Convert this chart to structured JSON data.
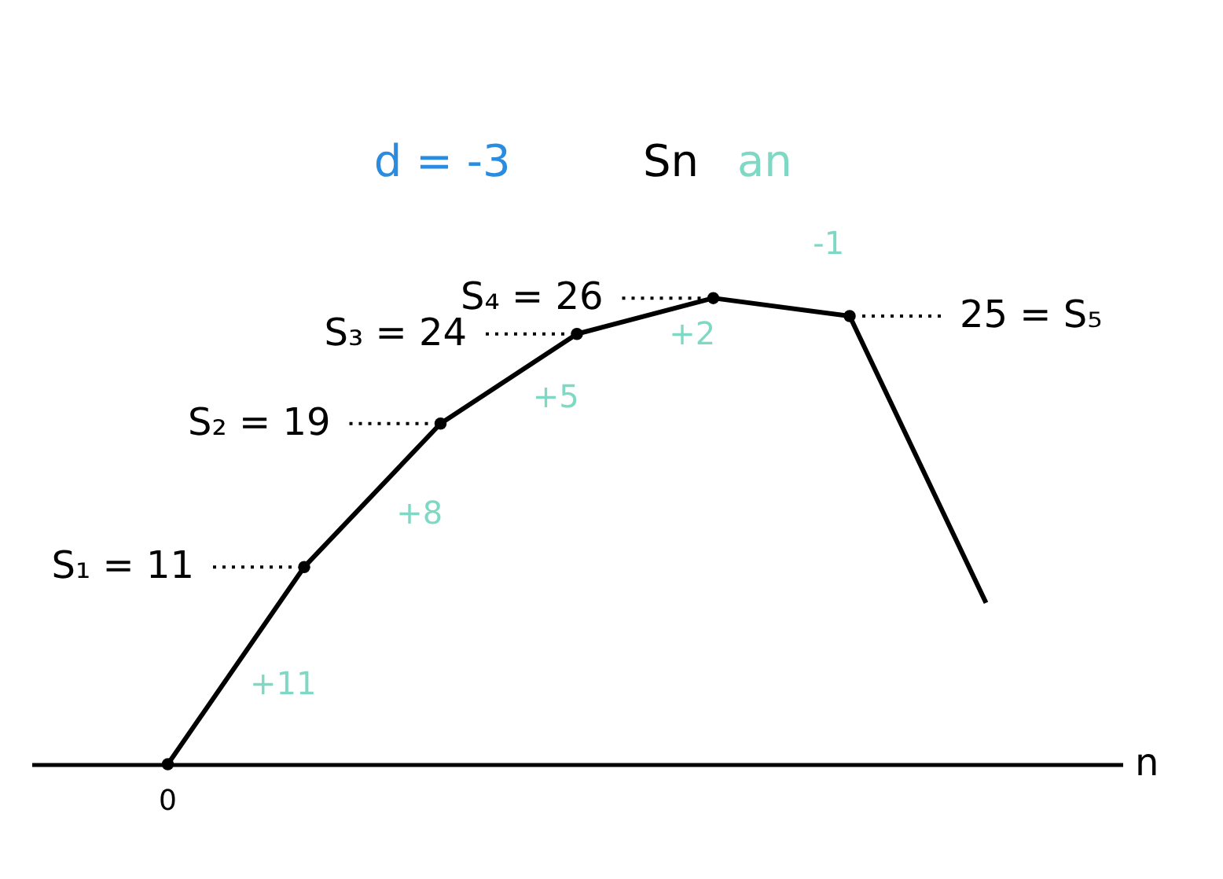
{
  "chart_data": {
    "type": "line",
    "title": "d = -3",
    "xlabel": "n",
    "categories": [
      null,
      null,
      null,
      null,
      null,
      null,
      null
    ],
    "series": [
      {
        "name": "Sn",
        "color": "#000000",
        "values": [
          0,
          11,
          19,
          24,
          26,
          25,
          9
        ],
        "value_labels": [
          null,
          "S₁ = 11",
          "S₂ = 19",
          "S₃ = 24",
          "S₄ = 26",
          "25 = S₅",
          null
        ]
      }
    ],
    "annotations": [
      "an",
      "0",
      "+11",
      "+8",
      "+5",
      "+2",
      "-1"
    ],
    "tick_labels": false,
    "marker": "circle"
  }
}
